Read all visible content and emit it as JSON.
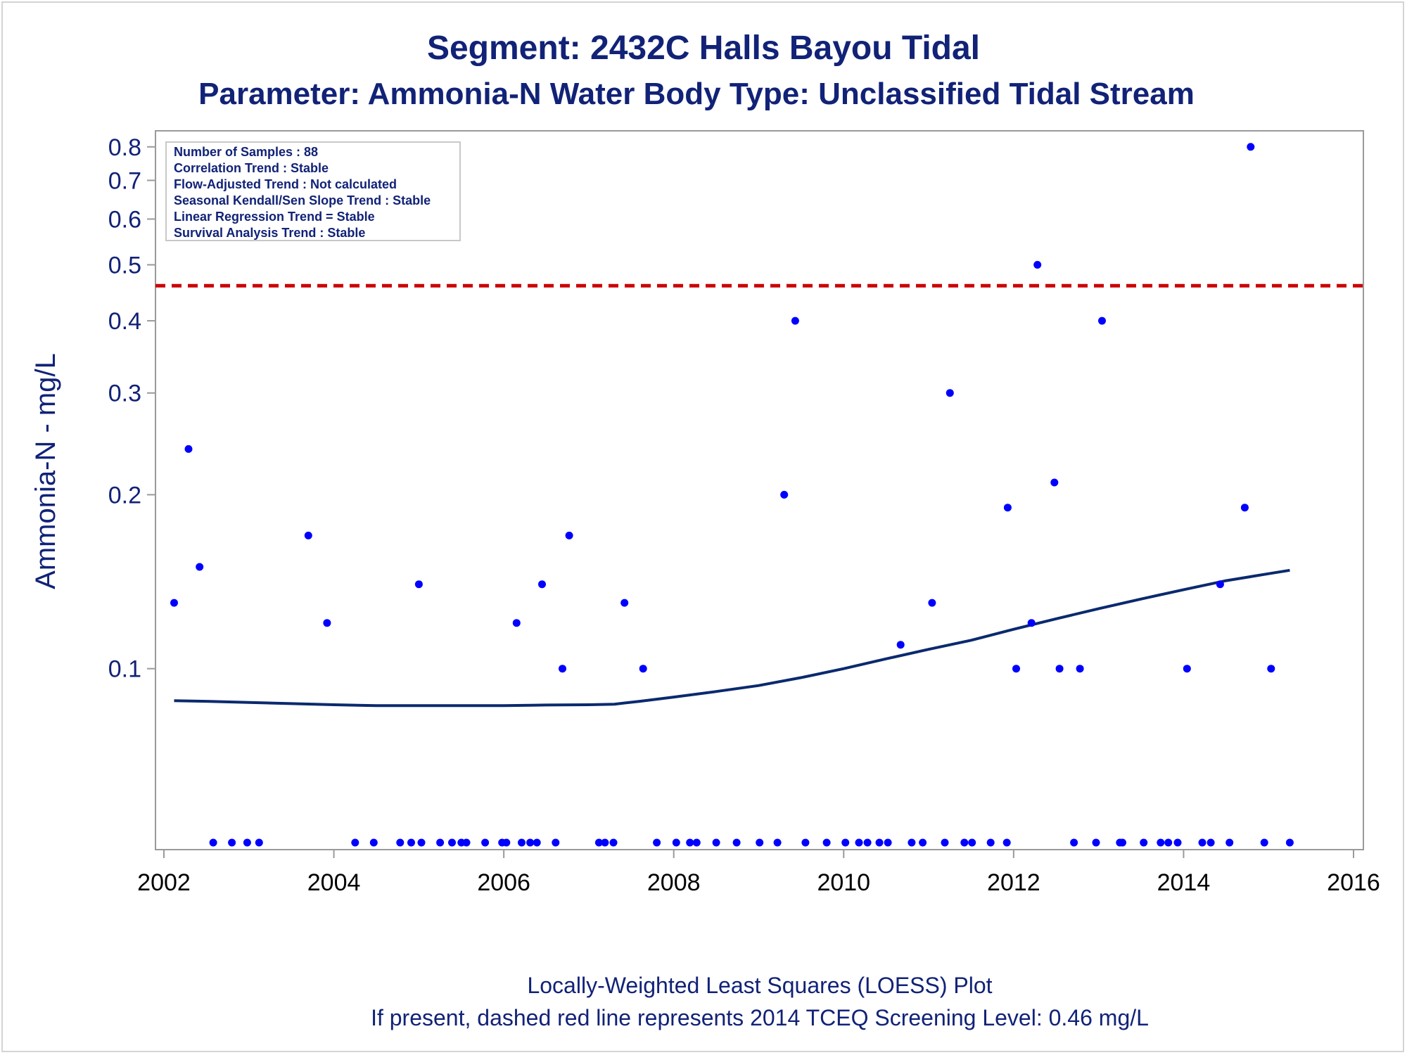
{
  "chart_data": {
    "type": "scatter",
    "title": "Segment: 2432C  Halls Bayou Tidal",
    "subtitle": "Parameter: Ammonia-N   Water Body Type: Unclassified Tidal Stream",
    "ylabel": "Ammonia-N - mg/L",
    "xlabel": "",
    "footnotes": [
      "Locally-Weighted Least Squares (LOESS) Plot",
      "If present, dashed red line represents 2014 TCEQ Screening Level: 0.46 mg/L"
    ],
    "info_box": [
      "Number of Samples : 88",
      "Correlation Trend : Stable",
      "Flow-Adjusted Trend : Not calculated",
      "Seasonal Kendall/Sen Slope Trend : Stable",
      "Linear Regression Trend = Stable",
      "Survival Analysis Trend : Stable"
    ],
    "x_ticks": [
      "2002",
      "2004",
      "2006",
      "2008",
      "2010",
      "2012",
      "2014",
      "2016"
    ],
    "y_ticks": [
      "0.1",
      "0.2",
      "0.3",
      "0.4",
      "0.5",
      "0.6",
      "0.7",
      "0.8"
    ],
    "xlim": [
      2002,
      2016
    ],
    "ylim": [
      0.05,
      0.82
    ],
    "y_scale": "log",
    "grid": false,
    "screening_level": 0.46,
    "colors": {
      "points": "#0000ff",
      "loess": "#0a2a6e",
      "screening": "#cc0000",
      "text": "#112277"
    },
    "series": [
      {
        "name": "",
        "values": [
          [
            2002.12,
            0.13
          ],
          [
            2002.29,
            0.24
          ],
          [
            2002.42,
            0.15
          ],
          [
            2002.58,
            0.05
          ],
          [
            2002.8,
            0.05
          ],
          [
            2002.98,
            0.05
          ],
          [
            2003.12,
            0.05
          ],
          [
            2003.7,
            0.17
          ],
          [
            2003.92,
            0.12
          ],
          [
            2004.25,
            0.05
          ],
          [
            2004.47,
            0.05
          ],
          [
            2004.78,
            0.05
          ],
          [
            2004.91,
            0.05
          ],
          [
            2005.0,
            0.14
          ],
          [
            2005.03,
            0.05
          ],
          [
            2005.25,
            0.05
          ],
          [
            2005.39,
            0.05
          ],
          [
            2005.5,
            0.05
          ],
          [
            2005.56,
            0.05
          ],
          [
            2005.78,
            0.05
          ],
          [
            2005.98,
            0.05
          ],
          [
            2006.03,
            0.05
          ],
          [
            2006.15,
            0.12
          ],
          [
            2006.21,
            0.05
          ],
          [
            2006.31,
            0.05
          ],
          [
            2006.39,
            0.05
          ],
          [
            2006.45,
            0.14
          ],
          [
            2006.61,
            0.05
          ],
          [
            2006.69,
            0.1
          ],
          [
            2006.77,
            0.17
          ],
          [
            2007.12,
            0.05
          ],
          [
            2007.19,
            0.05
          ],
          [
            2007.29,
            0.05
          ],
          [
            2007.42,
            0.13
          ],
          [
            2007.64,
            0.1
          ],
          [
            2007.8,
            0.05
          ],
          [
            2008.03,
            0.05
          ],
          [
            2008.19,
            0.05
          ],
          [
            2008.27,
            0.05
          ],
          [
            2008.5,
            0.05
          ],
          [
            2008.74,
            0.05
          ],
          [
            2009.01,
            0.05
          ],
          [
            2009.22,
            0.05
          ],
          [
            2009.3,
            0.2
          ],
          [
            2009.43,
            0.4
          ],
          [
            2009.55,
            0.05
          ],
          [
            2009.8,
            0.05
          ],
          [
            2010.02,
            0.05
          ],
          [
            2010.18,
            0.05
          ],
          [
            2010.28,
            0.05
          ],
          [
            2010.42,
            0.05
          ],
          [
            2010.52,
            0.05
          ],
          [
            2010.67,
            0.11
          ],
          [
            2010.8,
            0.05
          ],
          [
            2010.93,
            0.05
          ],
          [
            2011.04,
            0.13
          ],
          [
            2011.19,
            0.05
          ],
          [
            2011.25,
            0.3
          ],
          [
            2011.42,
            0.05
          ],
          [
            2011.51,
            0.05
          ],
          [
            2011.73,
            0.05
          ],
          [
            2011.92,
            0.05
          ],
          [
            2011.93,
            0.19
          ],
          [
            2012.03,
            0.1
          ],
          [
            2012.21,
            0.12
          ],
          [
            2012.28,
            0.5
          ],
          [
            2012.48,
            0.21
          ],
          [
            2012.54,
            0.1
          ],
          [
            2012.71,
            0.05
          ],
          [
            2012.78,
            0.1
          ],
          [
            2012.97,
            0.05
          ],
          [
            2013.04,
            0.4
          ],
          [
            2013.25,
            0.05
          ],
          [
            2013.28,
            0.05
          ],
          [
            2013.53,
            0.05
          ],
          [
            2013.73,
            0.05
          ],
          [
            2013.82,
            0.05
          ],
          [
            2013.93,
            0.05
          ],
          [
            2014.04,
            0.1
          ],
          [
            2014.22,
            0.05
          ],
          [
            2014.32,
            0.05
          ],
          [
            2014.43,
            0.14
          ],
          [
            2014.54,
            0.05
          ],
          [
            2014.72,
            0.19
          ],
          [
            2014.79,
            0.8
          ],
          [
            2014.95,
            0.05
          ],
          [
            2015.03,
            0.1
          ],
          [
            2015.25,
            0.05
          ]
        ]
      },
      {
        "name": "",
        "line": true,
        "values": [
          [
            2002.12,
            0.088
          ],
          [
            2002.5,
            0.0878
          ],
          [
            2003.0,
            0.0874
          ],
          [
            2003.5,
            0.087
          ],
          [
            2004.0,
            0.0866
          ],
          [
            2004.5,
            0.0863
          ],
          [
            2005.0,
            0.0863
          ],
          [
            2005.5,
            0.0863
          ],
          [
            2006.0,
            0.0863
          ],
          [
            2006.5,
            0.0865
          ],
          [
            2007.0,
            0.0866
          ],
          [
            2007.3,
            0.0868
          ],
          [
            2007.6,
            0.0878
          ],
          [
            2008.0,
            0.0893
          ],
          [
            2008.5,
            0.0913
          ],
          [
            2009.0,
            0.0935
          ],
          [
            2009.5,
            0.0965
          ],
          [
            2010.0,
            0.1
          ],
          [
            2010.5,
            0.104
          ],
          [
            2011.0,
            0.108
          ],
          [
            2011.5,
            0.112
          ],
          [
            2012.0,
            0.117
          ],
          [
            2012.5,
            0.122
          ],
          [
            2013.0,
            0.127
          ],
          [
            2013.5,
            0.132
          ],
          [
            2014.0,
            0.137
          ],
          [
            2014.5,
            0.142
          ],
          [
            2015.0,
            0.146
          ],
          [
            2015.25,
            0.148
          ]
        ]
      }
    ]
  }
}
